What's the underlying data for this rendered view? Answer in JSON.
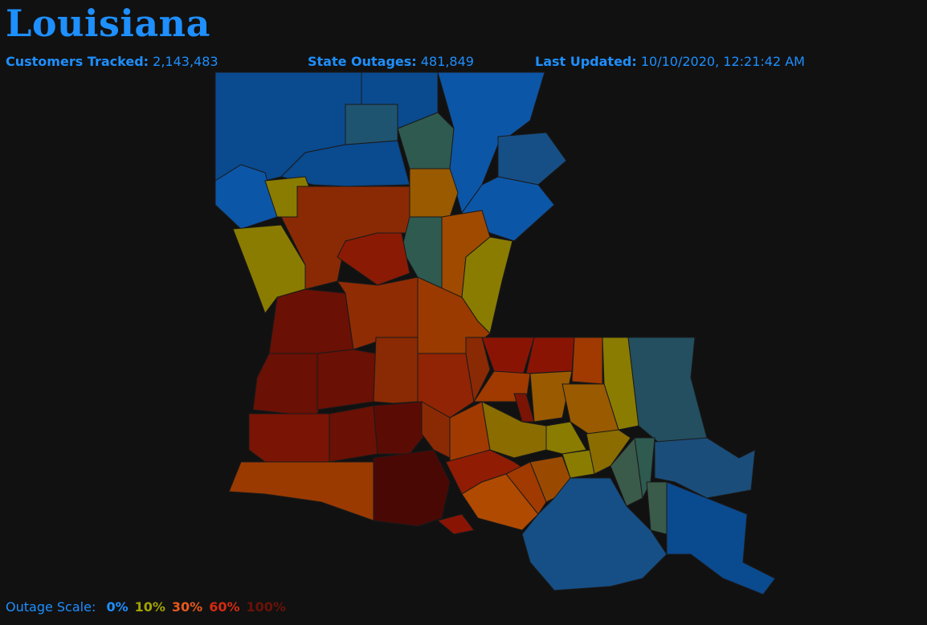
{
  "header": {
    "title": "Louisiana"
  },
  "stats": [
    {
      "label": "Customers Tracked:",
      "value": "2,143,483"
    },
    {
      "label": "State Outages:",
      "value": "481,849"
    },
    {
      "label": "Last Updated:",
      "value": "10/10/2020, 12:21:42 AM"
    }
  ],
  "scale": {
    "label": "Outage Scale:",
    "steps": [
      {
        "label": "0%",
        "color": "#1e8fff"
      },
      {
        "label": "10%",
        "color": "#a3a300"
      },
      {
        "label": "30%",
        "color": "#e8581c"
      },
      {
        "label": "60%",
        "color": "#d42a12"
      },
      {
        "label": "100%",
        "color": "#6a1208"
      }
    ]
  }
}
